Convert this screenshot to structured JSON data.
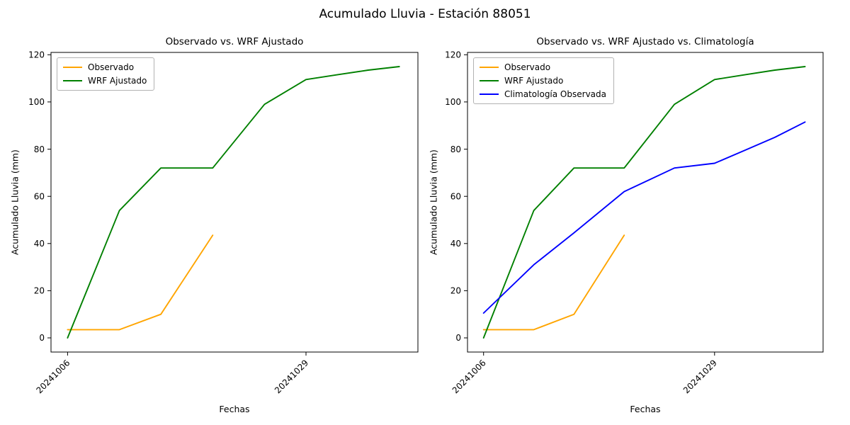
{
  "figure": {
    "title": "Acumulado Lluvia - Estación 88051"
  },
  "chart_data": [
    {
      "type": "line",
      "title": "Observado vs. WRF Ajustado",
      "xlabel": "Fechas",
      "ylabel": "Acumulado Lluvia (mm)",
      "grid": false,
      "legend_position": "upper left",
      "xlim": [
        -1.6,
        33.8
      ],
      "ylim": [
        -6,
        121
      ],
      "yticks": [
        0,
        20,
        40,
        60,
        80,
        100,
        120
      ],
      "xticks": [
        {
          "day": 0,
          "label": "20241006"
        },
        {
          "day": 23,
          "label": "20241029"
        }
      ],
      "x_days": [
        0,
        5,
        9,
        14,
        19,
        23,
        26,
        29,
        32
      ],
      "series": [
        {
          "name": "Observado",
          "color": "#FFA500",
          "values": [
            3.5,
            3.5,
            10,
            43.5,
            null,
            null,
            null,
            null,
            null
          ]
        },
        {
          "name": "WRF Ajustado",
          "color": "#008000",
          "values": [
            0,
            54,
            72,
            72,
            99,
            109.5,
            111.5,
            113.5,
            115
          ]
        }
      ]
    },
    {
      "type": "line",
      "title": "Observado vs. WRF Ajustado vs. Climatología",
      "xlabel": "Fechas",
      "ylabel": "Acumulado Lluvia (mm)",
      "grid": false,
      "legend_position": "upper left",
      "xlim": [
        -1.6,
        33.8
      ],
      "ylim": [
        -6,
        121
      ],
      "yticks": [
        0,
        20,
        40,
        60,
        80,
        100,
        120
      ],
      "xticks": [
        {
          "day": 0,
          "label": "20241006"
        },
        {
          "day": 23,
          "label": "20241029"
        }
      ],
      "x_days": [
        0,
        5,
        9,
        14,
        19,
        23,
        26,
        29,
        32
      ],
      "series": [
        {
          "name": "Observado",
          "color": "#FFA500",
          "values": [
            3.5,
            3.5,
            10,
            43.5,
            null,
            null,
            null,
            null,
            null
          ]
        },
        {
          "name": "WRF Ajustado",
          "color": "#008000",
          "values": [
            0,
            54,
            72,
            72,
            99,
            109.5,
            111.5,
            113.5,
            115
          ]
        },
        {
          "name": "Climatología Observada",
          "color": "#0000FF",
          "values": [
            10.5,
            31,
            44.5,
            62,
            72,
            74,
            79.5,
            85,
            91.5
          ]
        }
      ]
    }
  ]
}
